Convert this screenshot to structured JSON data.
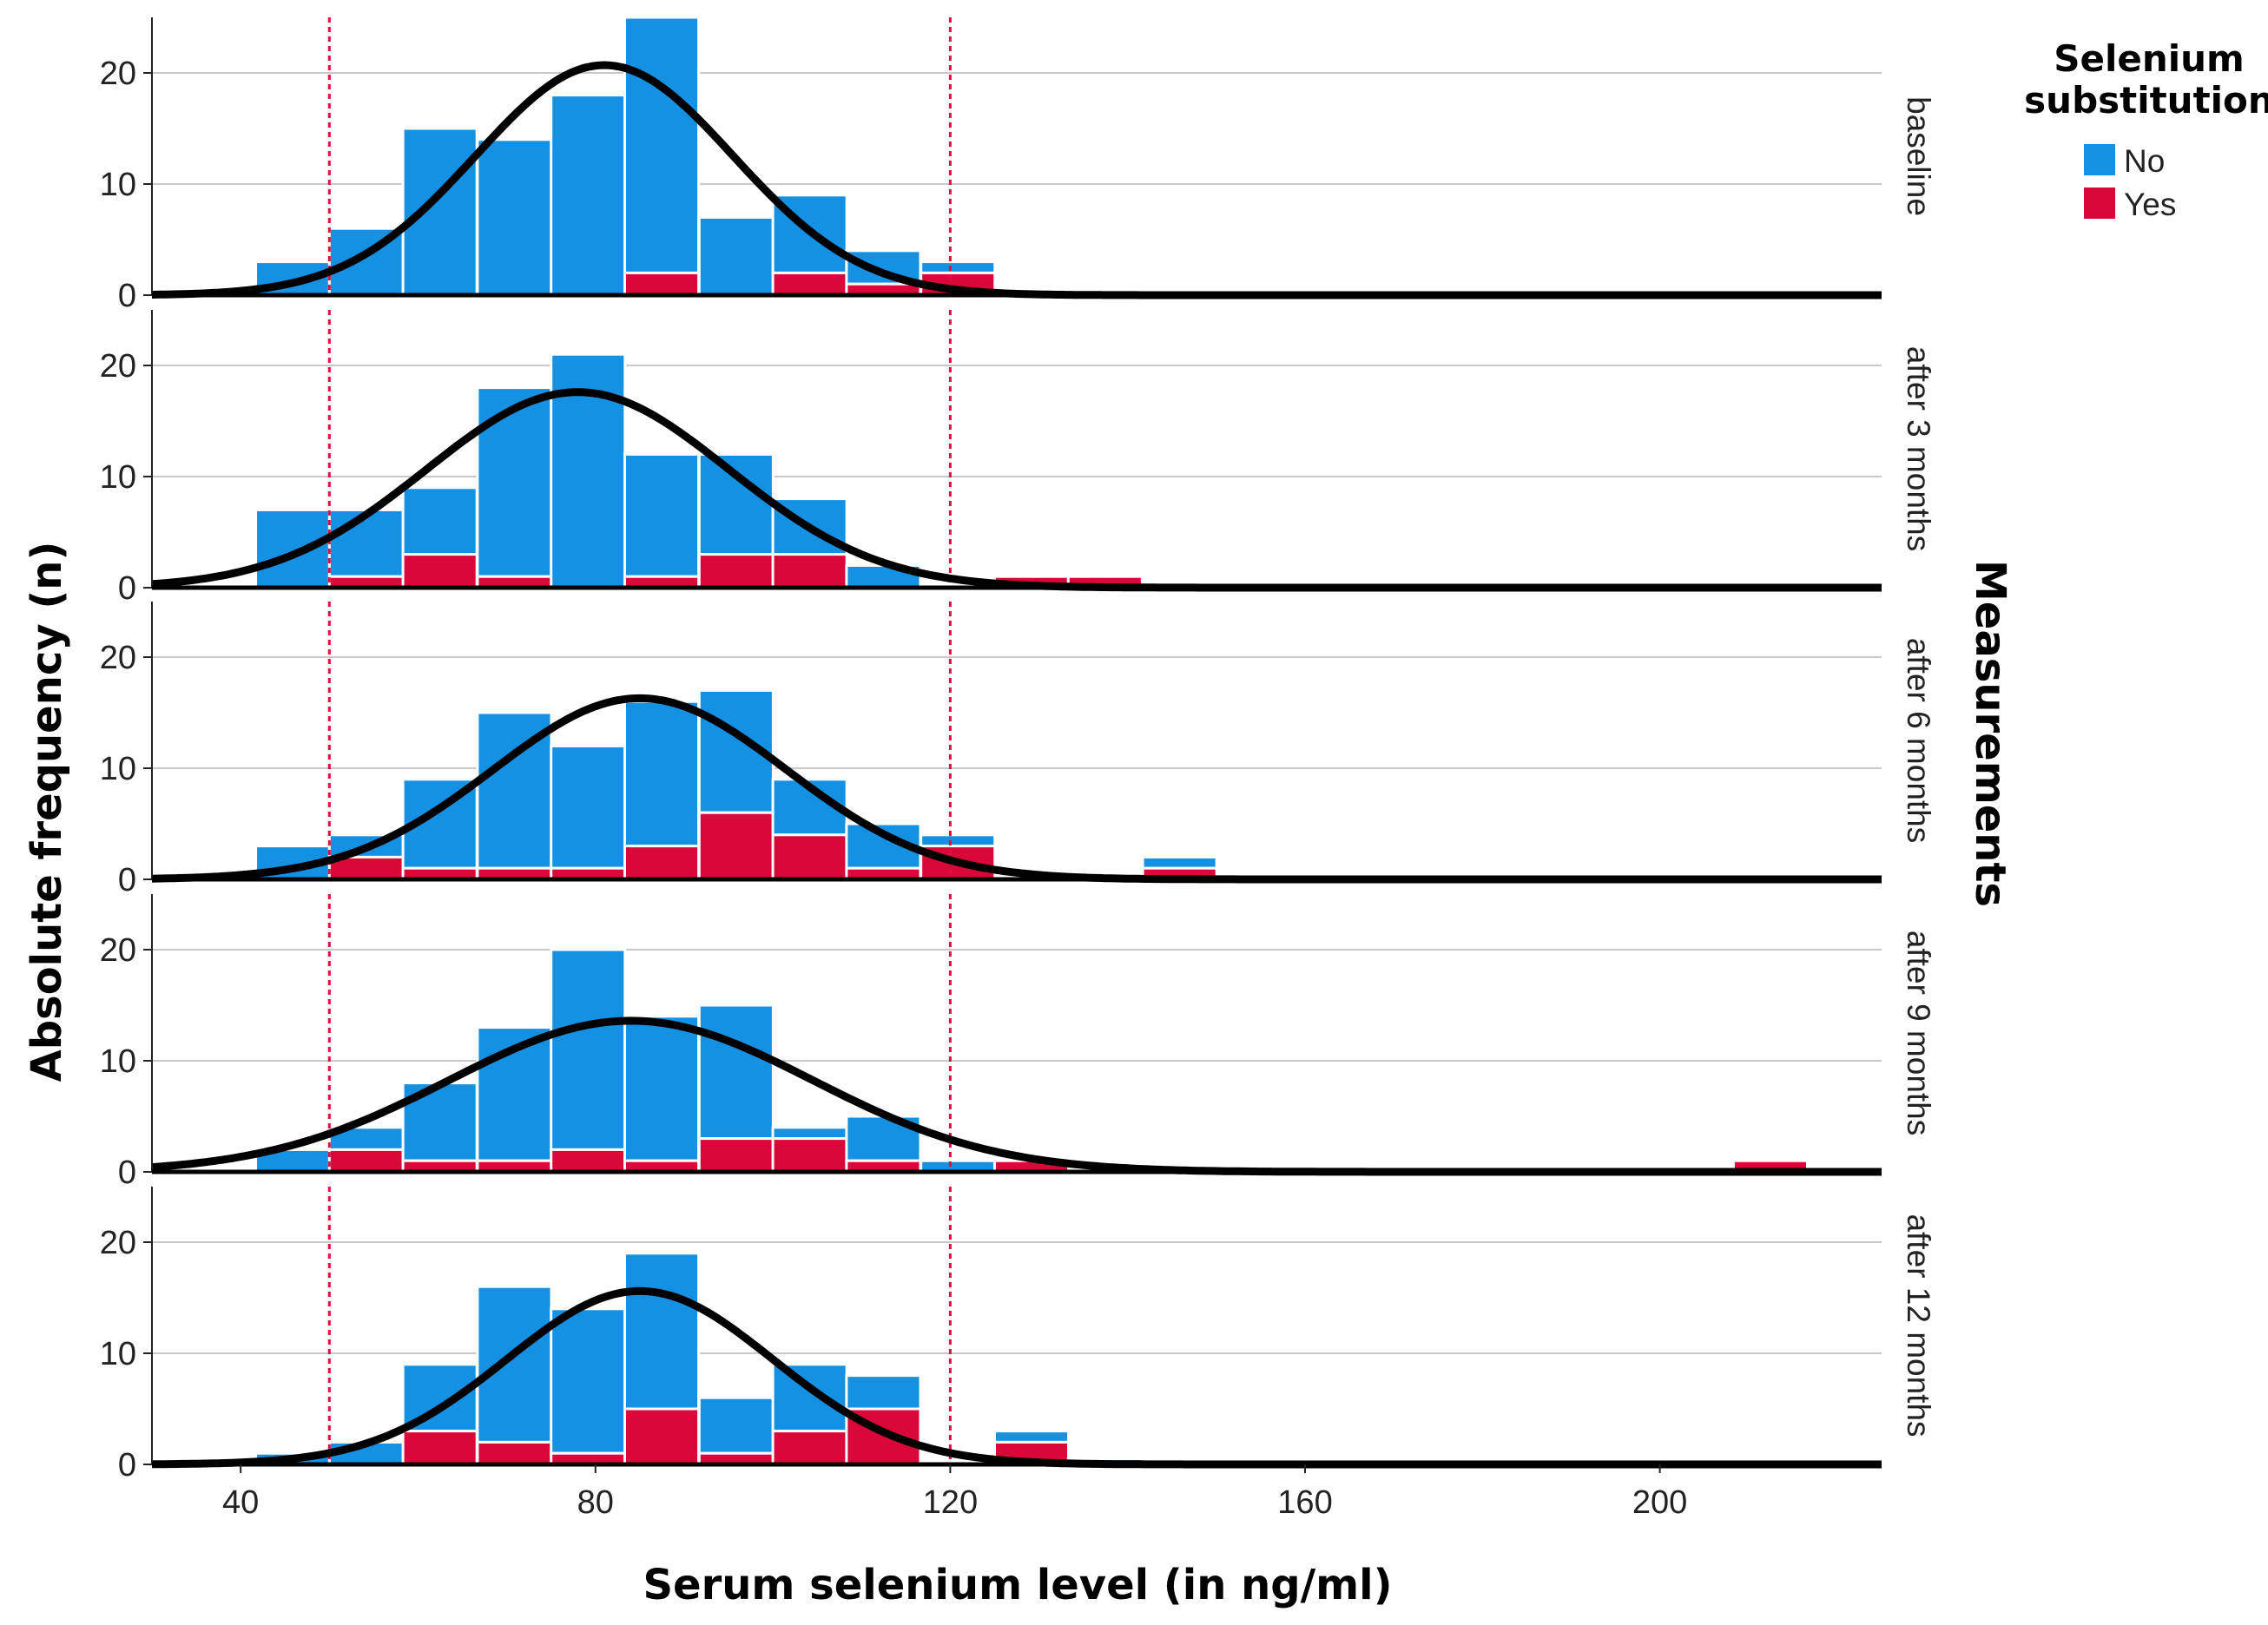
{
  "chart_data": {
    "type": "bar",
    "subtype": "faceted stacked histogram with fitted normal curves",
    "xlabel": "Serum selenium level (in ng/ml)",
    "ylabel": "Absolute frequency (n)",
    "facet_axis_label": "Measurements",
    "xlim": [
      30,
      225
    ],
    "ylim": [
      0,
      25
    ],
    "x_ticks": [
      40,
      80,
      120,
      160,
      200
    ],
    "y_ticks": [
      0,
      10,
      20
    ],
    "grid": true,
    "bin_width": 8.33,
    "reference_lines": [
      50,
      120
    ],
    "colors": {
      "No": "#1591e4",
      "Yes": "#da0739",
      "curve": "#000000",
      "reference": "#e0103e",
      "grid": "#c8c8c8"
    },
    "legend": {
      "title_line1": "Selenium",
      "title_line2": "substitution",
      "entries": [
        "No",
        "Yes"
      ],
      "position": "top-right"
    },
    "facets": [
      {
        "label": "baseline",
        "bins": [
          {
            "x0": 41.7,
            "no": 3,
            "yes": 0
          },
          {
            "x0": 50.0,
            "no": 6,
            "yes": 0
          },
          {
            "x0": 58.3,
            "no": 15,
            "yes": 0
          },
          {
            "x0": 66.7,
            "no": 14,
            "yes": 0
          },
          {
            "x0": 75.0,
            "no": 18,
            "yes": 0
          },
          {
            "x0": 83.3,
            "no": 23,
            "yes": 2
          },
          {
            "x0": 91.7,
            "no": 7,
            "yes": 0
          },
          {
            "x0": 100.0,
            "no": 7,
            "yes": 2
          },
          {
            "x0": 108.3,
            "no": 3,
            "yes": 1
          },
          {
            "x0": 116.7,
            "no": 1,
            "yes": 2
          }
        ],
        "normal_curve": {
          "mean": 81,
          "sd": 14.5,
          "peak": 20.7
        }
      },
      {
        "label": "after 3 months",
        "bins": [
          {
            "x0": 41.7,
            "no": 7,
            "yes": 0
          },
          {
            "x0": 50.0,
            "no": 6,
            "yes": 1
          },
          {
            "x0": 58.3,
            "no": 6,
            "yes": 3
          },
          {
            "x0": 66.7,
            "no": 17,
            "yes": 1
          },
          {
            "x0": 75.0,
            "no": 21,
            "yes": 0
          },
          {
            "x0": 83.3,
            "no": 11,
            "yes": 1
          },
          {
            "x0": 91.7,
            "no": 9,
            "yes": 3
          },
          {
            "x0": 100.0,
            "no": 5,
            "yes": 3
          },
          {
            "x0": 108.3,
            "no": 2,
            "yes": 0
          },
          {
            "x0": 125.0,
            "no": 0,
            "yes": 1
          },
          {
            "x0": 133.3,
            "no": 0,
            "yes": 1
          }
        ],
        "normal_curve": {
          "mean": 78,
          "sd": 17,
          "peak": 17.6
        }
      },
      {
        "label": "after 6 months",
        "bins": [
          {
            "x0": 41.7,
            "no": 3,
            "yes": 0
          },
          {
            "x0": 50.0,
            "no": 2,
            "yes": 2
          },
          {
            "x0": 58.3,
            "no": 8,
            "yes": 1
          },
          {
            "x0": 66.7,
            "no": 14,
            "yes": 1
          },
          {
            "x0": 75.0,
            "no": 11,
            "yes": 1
          },
          {
            "x0": 83.3,
            "no": 13,
            "yes": 3
          },
          {
            "x0": 91.7,
            "no": 11,
            "yes": 6
          },
          {
            "x0": 100.0,
            "no": 5,
            "yes": 4
          },
          {
            "x0": 108.3,
            "no": 4,
            "yes": 1
          },
          {
            "x0": 116.7,
            "no": 1,
            "yes": 3
          },
          {
            "x0": 141.7,
            "no": 1,
            "yes": 1
          }
        ],
        "normal_curve": {
          "mean": 85,
          "sd": 16.5,
          "peak": 16.3
        }
      },
      {
        "label": "after 9 months",
        "bins": [
          {
            "x0": 41.7,
            "no": 2,
            "yes": 0
          },
          {
            "x0": 50.0,
            "no": 2,
            "yes": 2
          },
          {
            "x0": 58.3,
            "no": 7,
            "yes": 1
          },
          {
            "x0": 66.7,
            "no": 12,
            "yes": 1
          },
          {
            "x0": 75.0,
            "no": 18,
            "yes": 2
          },
          {
            "x0": 83.3,
            "no": 13,
            "yes": 1
          },
          {
            "x0": 91.7,
            "no": 12,
            "yes": 3
          },
          {
            "x0": 100.0,
            "no": 1,
            "yes": 3
          },
          {
            "x0": 108.3,
            "no": 4,
            "yes": 1
          },
          {
            "x0": 116.7,
            "no": 1,
            "yes": 0
          },
          {
            "x0": 125.0,
            "no": 0,
            "yes": 1
          },
          {
            "x0": 208.3,
            "no": 0,
            "yes": 1
          }
        ],
        "normal_curve": {
          "mean": 84,
          "sd": 20.5,
          "peak": 13.6
        }
      },
      {
        "label": "after 12 months",
        "bins": [
          {
            "x0": 41.7,
            "no": 1,
            "yes": 0
          },
          {
            "x0": 50.0,
            "no": 2,
            "yes": 0
          },
          {
            "x0": 58.3,
            "no": 6,
            "yes": 3
          },
          {
            "x0": 66.7,
            "no": 14,
            "yes": 2
          },
          {
            "x0": 75.0,
            "no": 13,
            "yes": 1
          },
          {
            "x0": 83.3,
            "no": 14,
            "yes": 5
          },
          {
            "x0": 91.7,
            "no": 5,
            "yes": 1
          },
          {
            "x0": 100.0,
            "no": 6,
            "yes": 3
          },
          {
            "x0": 108.3,
            "no": 3,
            "yes": 5
          },
          {
            "x0": 125.0,
            "no": 1,
            "yes": 2
          },
          {
            "x0": 133.3,
            "no": 0.5,
            "yes": 0
          }
        ],
        "normal_curve": {
          "mean": 85,
          "sd": 15,
          "peak": 15.6
        }
      }
    ]
  }
}
